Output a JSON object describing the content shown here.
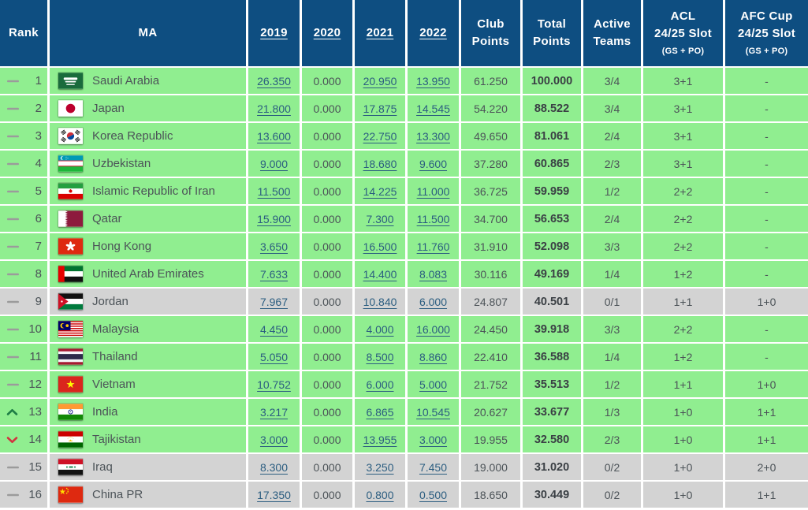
{
  "colors": {
    "header_bg": "#0e4e81",
    "row_green": "#90ee90",
    "row_grey": "#d3d3d3",
    "link": "#2b5d80",
    "rank_up": "#1e7d45",
    "rank_down": "#d2333f"
  },
  "table": {
    "header": {
      "rank": "Rank",
      "ma": "MA",
      "years": [
        "2019",
        "2020",
        "2021",
        "2022"
      ],
      "club_points": [
        "Club",
        "Points"
      ],
      "total_points": [
        "Total",
        "Points"
      ],
      "active_teams": [
        "Active",
        "Teams"
      ],
      "acl_slot": {
        "line1": "ACL",
        "line2": "24/25 Slot",
        "sub": "(GS + PO)"
      },
      "afc_cup_slot": {
        "line1": "AFC Cup",
        "line2": "24/25 Slot",
        "sub": "(GS + PO)"
      }
    },
    "rows": [
      {
        "rank": "1",
        "change": "same",
        "change_icon": "dash-icon",
        "country": "Saudi Arabia",
        "flag_icon": "flag-saudi-arabia",
        "y2019": "26.350",
        "y2020": "0.000",
        "y2021": "20.950",
        "y2022": "13.950",
        "club_points": "61.250",
        "total_points": "100.000",
        "active_teams": "3/4",
        "acl_slot": "3+1",
        "afc_cup_slot": "-",
        "row_color": "green"
      },
      {
        "rank": "2",
        "change": "same",
        "change_icon": "dash-icon",
        "country": "Japan",
        "flag_icon": "flag-japan",
        "y2019": "21.800",
        "y2020": "0.000",
        "y2021": "17.875",
        "y2022": "14.545",
        "club_points": "54.220",
        "total_points": "88.522",
        "active_teams": "3/4",
        "acl_slot": "3+1",
        "afc_cup_slot": "-",
        "row_color": "green"
      },
      {
        "rank": "3",
        "change": "same",
        "change_icon": "dash-icon",
        "country": "Korea Republic",
        "flag_icon": "flag-korea-republic",
        "y2019": "13.600",
        "y2020": "0.000",
        "y2021": "22.750",
        "y2022": "13.300",
        "club_points": "49.650",
        "total_points": "81.061",
        "active_teams": "2/4",
        "acl_slot": "3+1",
        "afc_cup_slot": "-",
        "row_color": "green"
      },
      {
        "rank": "4",
        "change": "same",
        "change_icon": "dash-icon",
        "country": "Uzbekistan",
        "flag_icon": "flag-uzbekistan",
        "y2019": "9.000",
        "y2020": "0.000",
        "y2021": "18.680",
        "y2022": "9.600",
        "club_points": "37.280",
        "total_points": "60.865",
        "active_teams": "2/3",
        "acl_slot": "3+1",
        "afc_cup_slot": "-",
        "row_color": "green"
      },
      {
        "rank": "5",
        "change": "same",
        "change_icon": "dash-icon",
        "country": "Islamic Republic of Iran",
        "flag_icon": "flag-iran",
        "y2019": "11.500",
        "y2020": "0.000",
        "y2021": "14.225",
        "y2022": "11.000",
        "club_points": "36.725",
        "total_points": "59.959",
        "active_teams": "1/2",
        "acl_slot": "2+2",
        "afc_cup_slot": "-",
        "row_color": "green"
      },
      {
        "rank": "6",
        "change": "same",
        "change_icon": "dash-icon",
        "country": "Qatar",
        "flag_icon": "flag-qatar",
        "y2019": "15.900",
        "y2020": "0.000",
        "y2021": "7.300",
        "y2022": "11.500",
        "club_points": "34.700",
        "total_points": "56.653",
        "active_teams": "2/4",
        "acl_slot": "2+2",
        "afc_cup_slot": "-",
        "row_color": "green"
      },
      {
        "rank": "7",
        "change": "same",
        "change_icon": "dash-icon",
        "country": "Hong Kong",
        "flag_icon": "flag-hong-kong",
        "y2019": "3.650",
        "y2020": "0.000",
        "y2021": "16.500",
        "y2022": "11.760",
        "club_points": "31.910",
        "total_points": "52.098",
        "active_teams": "3/3",
        "acl_slot": "2+2",
        "afc_cup_slot": "-",
        "row_color": "green"
      },
      {
        "rank": "8",
        "change": "same",
        "change_icon": "dash-icon",
        "country": "United Arab Emirates",
        "flag_icon": "flag-uae",
        "y2019": "7.633",
        "y2020": "0.000",
        "y2021": "14.400",
        "y2022": "8.083",
        "club_points": "30.116",
        "total_points": "49.169",
        "active_teams": "1/4",
        "acl_slot": "1+2",
        "afc_cup_slot": "-",
        "row_color": "green"
      },
      {
        "rank": "9",
        "change": "same",
        "change_icon": "dash-icon",
        "country": "Jordan",
        "flag_icon": "flag-jordan",
        "y2019": "7.967",
        "y2020": "0.000",
        "y2021": "10.840",
        "y2022": "6.000",
        "club_points": "24.807",
        "total_points": "40.501",
        "active_teams": "0/1",
        "acl_slot": "1+1",
        "afc_cup_slot": "1+0",
        "row_color": "grey"
      },
      {
        "rank": "10",
        "change": "same",
        "change_icon": "dash-icon",
        "country": "Malaysia",
        "flag_icon": "flag-malaysia",
        "y2019": "4.450",
        "y2020": "0.000",
        "y2021": "4.000",
        "y2022": "16.000",
        "club_points": "24.450",
        "total_points": "39.918",
        "active_teams": "3/3",
        "acl_slot": "2+2",
        "afc_cup_slot": "-",
        "row_color": "green"
      },
      {
        "rank": "11",
        "change": "same",
        "change_icon": "dash-icon",
        "country": "Thailand",
        "flag_icon": "flag-thailand",
        "y2019": "5.050",
        "y2020": "0.000",
        "y2021": "8.500",
        "y2022": "8.860",
        "club_points": "22.410",
        "total_points": "36.588",
        "active_teams": "1/4",
        "acl_slot": "1+2",
        "afc_cup_slot": "-",
        "row_color": "green"
      },
      {
        "rank": "12",
        "change": "same",
        "change_icon": "dash-icon",
        "country": "Vietnam",
        "flag_icon": "flag-vietnam",
        "y2019": "10.752",
        "y2020": "0.000",
        "y2021": "6.000",
        "y2022": "5.000",
        "club_points": "21.752",
        "total_points": "35.513",
        "active_teams": "1/2",
        "acl_slot": "1+1",
        "afc_cup_slot": "1+0",
        "row_color": "green"
      },
      {
        "rank": "13",
        "change": "up",
        "change_icon": "chevron-up-icon",
        "country": "India",
        "flag_icon": "flag-india",
        "y2019": "3.217",
        "y2020": "0.000",
        "y2021": "6.865",
        "y2022": "10.545",
        "club_points": "20.627",
        "total_points": "33.677",
        "active_teams": "1/3",
        "acl_slot": "1+0",
        "afc_cup_slot": "1+1",
        "row_color": "green"
      },
      {
        "rank": "14",
        "change": "down",
        "change_icon": "chevron-down-icon",
        "country": "Tajikistan",
        "flag_icon": "flag-tajikistan",
        "y2019": "3.000",
        "y2020": "0.000",
        "y2021": "13.955",
        "y2022": "3.000",
        "club_points": "19.955",
        "total_points": "32.580",
        "active_teams": "2/3",
        "acl_slot": "1+0",
        "afc_cup_slot": "1+1",
        "row_color": "green"
      },
      {
        "rank": "15",
        "change": "same",
        "change_icon": "dash-icon",
        "country": "Iraq",
        "flag_icon": "flag-iraq",
        "y2019": "8.300",
        "y2020": "0.000",
        "y2021": "3.250",
        "y2022": "7.450",
        "club_points": "19.000",
        "total_points": "31.020",
        "active_teams": "0/2",
        "acl_slot": "1+0",
        "afc_cup_slot": "2+0",
        "row_color": "grey"
      },
      {
        "rank": "16",
        "change": "same",
        "change_icon": "dash-icon",
        "country": "China PR",
        "flag_icon": "flag-china",
        "y2019": "17.350",
        "y2020": "0.000",
        "y2021": "0.800",
        "y2022": "0.500",
        "club_points": "18.650",
        "total_points": "30.449",
        "active_teams": "0/2",
        "acl_slot": "1+0",
        "afc_cup_slot": "1+1",
        "row_color": "grey"
      }
    ]
  }
}
